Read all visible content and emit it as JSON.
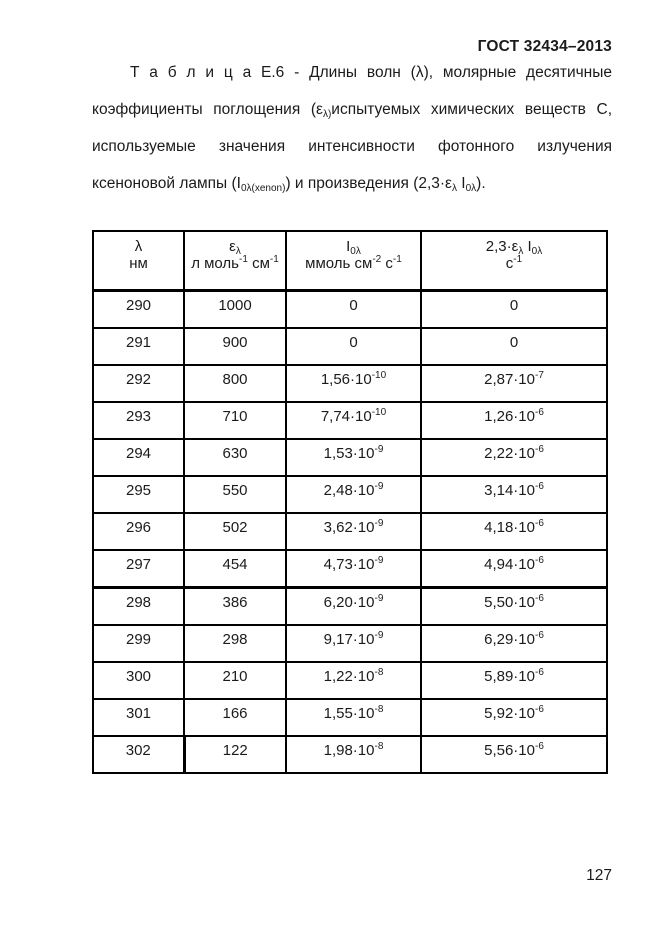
{
  "page": {
    "standard_code": "ГОСТ 32434–2013",
    "page_number": "127"
  },
  "caption": {
    "lines": [
      "Т а б л и ц а Е.6 - Длины волн (λ), молярные десятичные",
      "коэффициенты поглощения (ε_{λ)}испытуемых химических веществ С,",
      "используемые значения интенсивности фотонного излучения",
      "ксеноновой лампы (I_{0λ(xenon)}) и произведения (2,3·ε_{λ} I_{0λ})."
    ]
  },
  "table": {
    "columns": [
      {
        "key": "lambda",
        "title": "λ",
        "unit": "нм"
      },
      {
        "key": "epsilon",
        "title": "ε_{λ}",
        "unit": "л моль^{-1} см^{-1}"
      },
      {
        "key": "i0",
        "title": "I_{0λ}",
        "unit": "ммоль см^{-2} с^{-1}"
      },
      {
        "key": "product",
        "title": "2,3·ε_{λ} I_{0λ}",
        "unit": "с^{-1}"
      }
    ],
    "rows": [
      [
        "290",
        "1000",
        "0",
        "0"
      ],
      [
        "291",
        "900",
        "0",
        "0"
      ],
      [
        "292",
        "800",
        "1,56·10^{-10}",
        "2,87·10^{-7}"
      ],
      [
        "293",
        "710",
        "7,74·10^{-10}",
        "1,26·10^{-6}"
      ],
      [
        "294",
        "630",
        "1,53·10^{-9}",
        "2,22·10^{-6}"
      ],
      [
        "295",
        "550",
        "2,48·10^{-9}",
        "3,14·10^{-6}"
      ],
      [
        "296",
        "502",
        "3,62·10^{-9}",
        "4,18·10^{-6}"
      ],
      [
        "297",
        "454",
        "4,73·10^{-9}",
        "4,94·10^{-6}"
      ],
      [
        "298",
        "386",
        "6,20·10^{-9}",
        "5,50·10^{-6}"
      ],
      [
        "299",
        "298",
        "9,17·10^{-9}",
        "6,29·10^{-6}"
      ],
      [
        "300",
        "210",
        "1,22·10^{-8}",
        "5,89·10^{-6}"
      ],
      [
        "301",
        "166",
        "1,55·10^{-8}",
        "5,92·10^{-6}"
      ],
      [
        "302",
        "122",
        "1,98·10^{-8}",
        "5,56·10^{-6}"
      ]
    ]
  }
}
